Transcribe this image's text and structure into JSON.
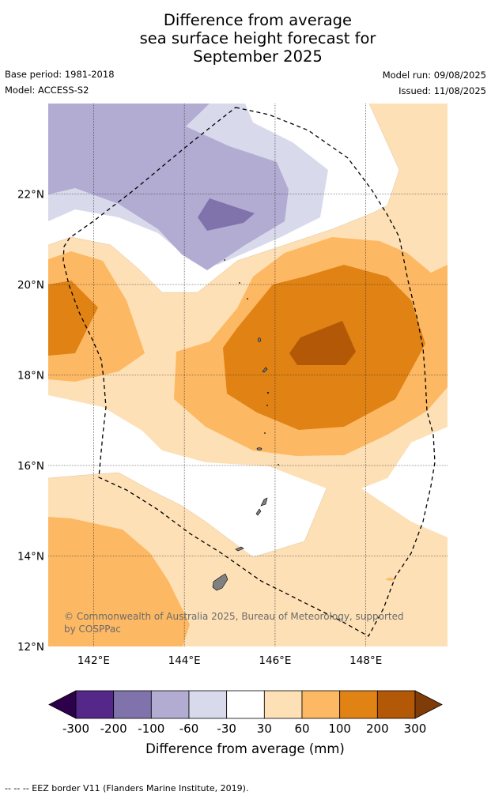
{
  "title": {
    "line1": "Difference from average",
    "line2": "sea surface height forecast for",
    "line3": "September 2025"
  },
  "meta": {
    "base_period": "Base period: 1981-2018",
    "model": "Model: ACCESS-S2",
    "model_run": "Model run: 09/08/2025",
    "issued": "Issued: 11/08/2025"
  },
  "map": {
    "lon_range": [
      141,
      149.8
    ],
    "lat_range": [
      12,
      24
    ],
    "lon_ticks": [
      "142°E",
      "144°E",
      "146°E",
      "148°E"
    ],
    "lat_ticks": [
      "12°N",
      "14°N",
      "16°N",
      "18°N",
      "20°N",
      "22°N"
    ],
    "gridlines": true,
    "copyright": "© Commonwealth of Australia 2025, Bureau of Meteorology, supported by COSPPac"
  },
  "legend": {
    "label": "Difference from average (mm)",
    "ticks": [
      "-300",
      "-200",
      "-100",
      "-60",
      "-30",
      "30",
      "60",
      "100",
      "200",
      "300"
    ],
    "colors": [
      "#2d004b",
      "#542788",
      "#8073ac",
      "#b2abd2",
      "#d8daeb",
      "#ffffff",
      "#fee0b6",
      "#fdb863",
      "#e08214",
      "#b35806",
      "#7f3b08"
    ]
  },
  "footer": "--  --  -- EEZ border V11 (Flanders Marine Institute, 2019)."
}
